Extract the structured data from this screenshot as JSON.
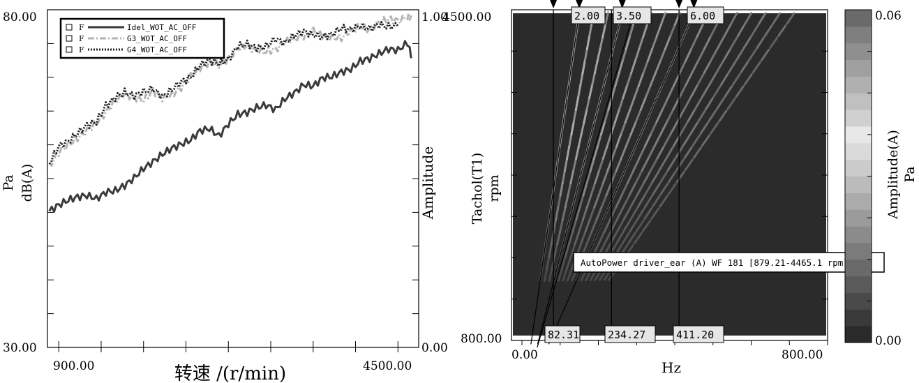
{
  "chart_data": [
    {
      "type": "line",
      "ylabel_units": "Pa",
      "ylabel": "dB(A)",
      "y2label": "Amplitude",
      "xlabel": "转速 /(r/min)",
      "x_tick_labels": [
        "900.00",
        "4500.00"
      ],
      "y_tick_labels": [
        "80.00",
        "30.00"
      ],
      "y2_tick_labels": [
        "1.00",
        "0.00"
      ],
      "xlim": [
        900,
        4500
      ],
      "ylim": [
        30,
        80
      ],
      "legend": {
        "placement": "top-left",
        "entries": [
          {
            "marker": "F",
            "name": "Idel_WOT_AC_OFF"
          },
          {
            "marker": "F",
            "name": "G3_WOT_AC_OFF"
          },
          {
            "marker": "F",
            "name": "G4_WOT_AC_OFF"
          }
        ]
      },
      "series": [
        {
          "name": "Idel_WOT_AC_OFF",
          "color": "#3a3a3a",
          "style": "solid",
          "x": [
            800,
            900,
            1000,
            1100,
            1200,
            1300,
            1400,
            1500,
            1600,
            1700,
            1800,
            1900,
            2000,
            2100,
            2200,
            2300,
            2400,
            2500,
            2600,
            2700,
            2800,
            2900,
            3000,
            3100,
            3200,
            3300,
            3400,
            3500,
            3600,
            3700,
            3800,
            3900,
            4000,
            4100,
            4200,
            4300,
            4400,
            4500,
            4600,
            4650
          ],
          "y": [
            50.2,
            51.1,
            51.8,
            52.3,
            52.5,
            52.0,
            53.0,
            53.2,
            54.0,
            55.1,
            56.5,
            57.5,
            58.6,
            59.5,
            60.1,
            60.7,
            62.1,
            62.4,
            61.3,
            63.1,
            64.5,
            64.8,
            65.5,
            65.9,
            65.2,
            66.8,
            67.7,
            68.9,
            68.7,
            69.9,
            70.1,
            70.8,
            71.2,
            72.4,
            72.8,
            73.5,
            74.2,
            74.0,
            75.1,
            73.0
          ]
        },
        {
          "name": "G3_WOT_AC_OFF",
          "color": "#b3b3b3",
          "style": "dash-dot",
          "x": [
            800,
            900,
            1000,
            1100,
            1200,
            1300,
            1400,
            1500,
            1600,
            1700,
            1800,
            1900,
            2000,
            2100,
            2200,
            2300,
            2400,
            2500,
            2600,
            2700,
            2800,
            2900,
            3000,
            3100,
            3200,
            3300,
            3400,
            3500,
            3600,
            3700,
            3800,
            3900,
            4000,
            4100,
            4200,
            4300,
            4400,
            4500,
            4600,
            4650
          ],
          "y": [
            56.8,
            58.9,
            60.0,
            61.0,
            62.1,
            63.2,
            64.8,
            66.5,
            67.5,
            67.0,
            66.6,
            68.0,
            66.9,
            67.4,
            68.5,
            70.1,
            71.4,
            72.2,
            71.8,
            72.8,
            74.3,
            74.6,
            74.0,
            73.8,
            74.1,
            75.2,
            75.7,
            76.1,
            77.0,
            76.2,
            75.9,
            75.8,
            76.9,
            77.5,
            77.1,
            78.2,
            78.6,
            78.4,
            78.9,
            79.0
          ]
        },
        {
          "name": "G4_WOT_AC_OFF",
          "color": "#1e1e1e",
          "style": "dotted",
          "x": [
            800,
            900,
            1000,
            1100,
            1200,
            1300,
            1400,
            1500,
            1600,
            1700,
            1800,
            1900,
            2000,
            2100,
            2200,
            2300,
            2400,
            2500,
            2600,
            2700,
            2800,
            2900,
            3000,
            3100,
            3200,
            3300,
            3400,
            3500,
            3600,
            3700,
            3800,
            3900,
            4000,
            4100,
            4200,
            4300,
            4400,
            4500
          ],
          "y": [
            57.3,
            59.8,
            60.5,
            61.7,
            62.9,
            63.4,
            65.8,
            67.0,
            67.8,
            67.2,
            67.9,
            68.3,
            67.1,
            68.2,
            69.3,
            70.0,
            71.8,
            72.5,
            72.0,
            72.7,
            74.6,
            74.9,
            74.3,
            74.6,
            75.7,
            75.1,
            76.2,
            76.8,
            76.3,
            76.0,
            76.4,
            77.3,
            77.1,
            77.6,
            77.2,
            77.8,
            77.5,
            77.6
          ]
        }
      ]
    },
    {
      "type": "heatmap",
      "title": "AutoPower driver_ear (A) WF 181 [879.21-4465.1 rpm]",
      "xlabel": "Hz",
      "ylabel_line1": "Tachol(T1)",
      "ylabel_line2": "rpm",
      "colorbar_label_line1": "Amplitude(A)",
      "colorbar_label_line2": "Pa",
      "x_tick_labels": [
        "0.00",
        "800.00"
      ],
      "y_tick_labels": [
        "4500.00",
        "800.00"
      ],
      "colorbar_tick_labels": [
        "0.06",
        "0.00"
      ],
      "xlim": [
        0,
        800
      ],
      "ylim": [
        800,
        4500
      ],
      "colorbar_range": [
        0,
        0.06
      ],
      "order_labels": [
        "2.00",
        "3.50",
        "6.00"
      ],
      "orders": [
        2.0,
        3.5,
        6.0
      ],
      "frequency_cursors": [
        82.31,
        234.27,
        411.2
      ],
      "frequency_cursor_labels": [
        "82.31",
        "234.27",
        "411.20"
      ],
      "background_color": "#2b2b2b",
      "colorbar_colors": [
        "#2a2a2a",
        "#3a3a3a",
        "#4a4a4a",
        "#5a5a5a",
        "#6a6a6a",
        "#7b7b7b",
        "#8b8b8b",
        "#9b9b9b",
        "#ababab",
        "#bbbbbb",
        "#cbcbcb",
        "#dadada",
        "#e8e8e8",
        "#d0d0d0",
        "#c0c0c0",
        "#b0b0b0",
        "#a0a0a0",
        "#8f8f8f",
        "#7f7f7f",
        "#6a6a6a"
      ]
    }
  ]
}
